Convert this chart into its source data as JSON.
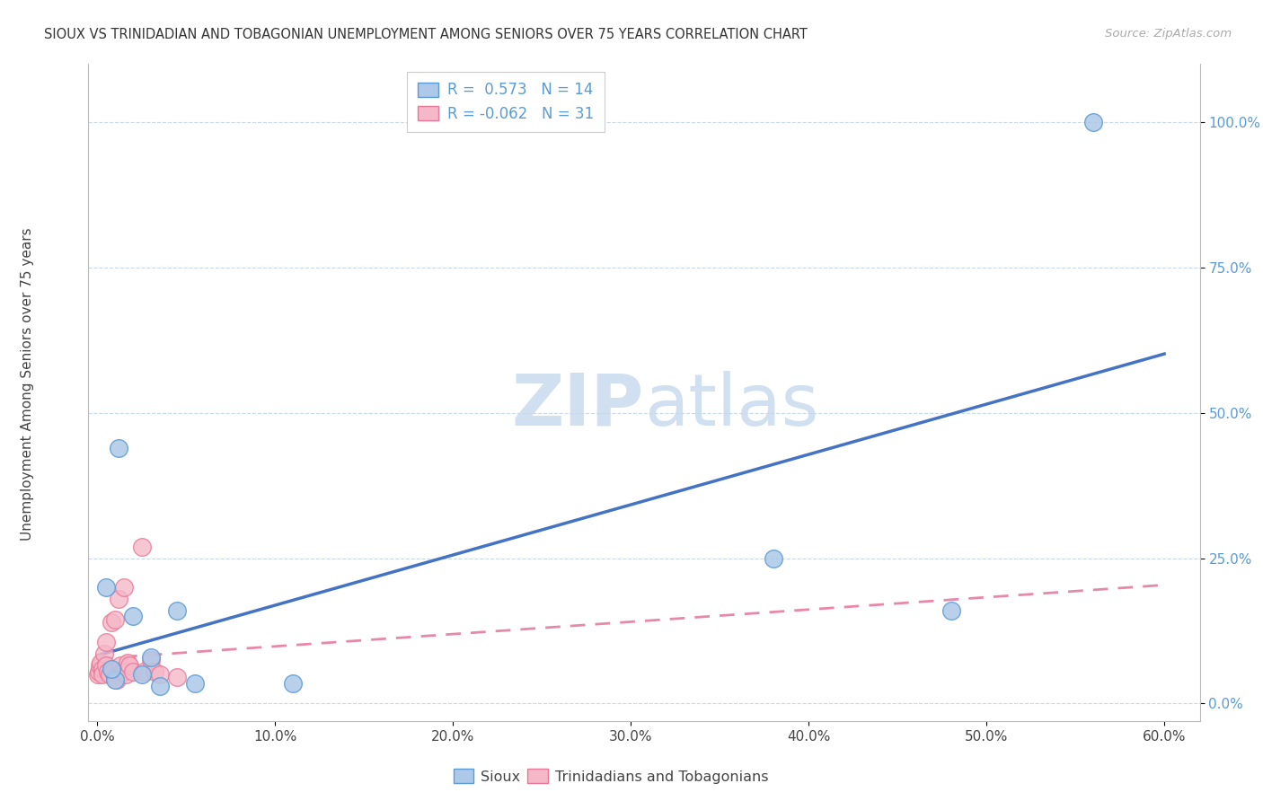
{
  "title": "SIOUX VS TRINIDADIAN AND TOBAGONIAN UNEMPLOYMENT AMONG SENIORS OVER 75 YEARS CORRELATION CHART",
  "source": "Source: ZipAtlas.com",
  "ylabel": "Unemployment Among Seniors over 75 years",
  "xlabel_vals": [
    0.0,
    10.0,
    20.0,
    30.0,
    40.0,
    50.0,
    60.0
  ],
  "ylabel_vals": [
    0.0,
    25.0,
    50.0,
    75.0,
    100.0
  ],
  "sioux_R": 0.573,
  "sioux_N": 14,
  "tnt_R": -0.062,
  "tnt_N": 31,
  "sioux_color": "#adc8e8",
  "tnt_color": "#f5b8c8",
  "sioux_edge_color": "#5b9bd5",
  "tnt_edge_color": "#e87898",
  "sioux_line_color": "#4472c4",
  "tnt_line_color": "#e888a8",
  "tick_color": "#5b9bd5",
  "watermark_color": "#d0e0f0",
  "grid_color": "#c8d8e8",
  "sioux_x": [
    0.5,
    1.2,
    2.0,
    3.0,
    4.5,
    5.5,
    11.0,
    38.0,
    48.0,
    56.0,
    1.0,
    2.5,
    0.8,
    3.5
  ],
  "sioux_y": [
    20.0,
    44.0,
    15.0,
    8.0,
    16.0,
    3.5,
    3.5,
    25.0,
    16.0,
    100.0,
    4.0,
    5.0,
    6.0,
    3.0
  ],
  "tnt_x": [
    0.05,
    0.1,
    0.15,
    0.2,
    0.3,
    0.3,
    0.4,
    0.5,
    0.5,
    0.6,
    0.7,
    0.8,
    0.9,
    1.0,
    1.0,
    1.1,
    1.2,
    1.3,
    1.4,
    1.5,
    1.5,
    1.6,
    1.7,
    1.8,
    2.0,
    2.5,
    2.6,
    3.0,
    3.2,
    3.5,
    4.5
  ],
  "tnt_y": [
    5.0,
    5.5,
    6.5,
    7.0,
    6.0,
    5.0,
    8.5,
    10.5,
    6.5,
    5.5,
    5.0,
    14.0,
    5.5,
    14.5,
    4.5,
    4.0,
    18.0,
    6.5,
    5.5,
    5.5,
    20.0,
    5.0,
    7.0,
    6.5,
    5.5,
    27.0,
    5.5,
    7.5,
    5.5,
    5.0,
    4.5
  ],
  "xlim": [
    -0.5,
    62.0
  ],
  "ylim": [
    -3.0,
    110.0
  ],
  "xmin_data": 0.0,
  "xmax_data": 60.0
}
